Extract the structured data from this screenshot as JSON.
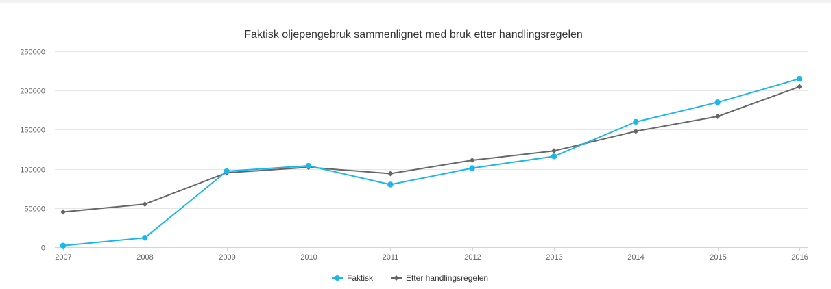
{
  "chart_data": {
    "type": "line",
    "title": "Faktisk oljepengebruk sammenlignet med bruk etter handlingsregelen",
    "xlabel": "",
    "ylabel": "",
    "x": [
      "2007",
      "2008",
      "2009",
      "2010",
      "2011",
      "2012",
      "2013",
      "2014",
      "2015",
      "2016"
    ],
    "ylim": [
      0,
      250000
    ],
    "yticks": [
      0,
      50000,
      100000,
      150000,
      200000,
      250000
    ],
    "ytick_labels": [
      "0",
      "50000",
      "100000",
      "150000",
      "200000",
      "250000"
    ],
    "grid": true,
    "legend_position": "bottom-center",
    "series": [
      {
        "name": "Faktisk",
        "color": "#1ab7ea",
        "marker": "circle",
        "values": [
          2000,
          12000,
          97000,
          104000,
          80000,
          101000,
          116000,
          160000,
          185000,
          215000
        ]
      },
      {
        "name": "Etter handlingsregelen",
        "color": "#666666",
        "marker": "diamond",
        "values": [
          45000,
          55000,
          95000,
          102000,
          94000,
          111000,
          123000,
          148000,
          167000,
          205000
        ]
      }
    ]
  }
}
